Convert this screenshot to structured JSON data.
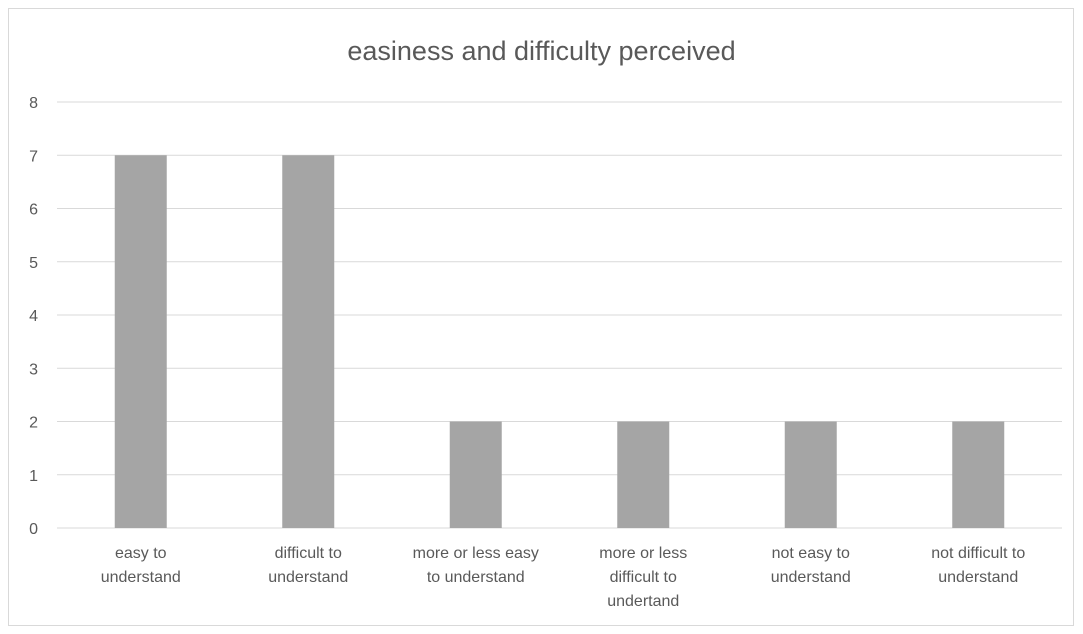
{
  "chart_data": {
    "type": "bar",
    "title": "easiness and difficulty perceived",
    "categories": [
      [
        "easy to",
        "understand"
      ],
      [
        "difficult to",
        "understand"
      ],
      [
        "more or less easy",
        "to understand"
      ],
      [
        "more or less",
        "difficult to",
        "undertand"
      ],
      [
        "not easy to",
        "understand"
      ],
      [
        "not difficult to",
        "understand"
      ]
    ],
    "values": [
      7,
      7,
      2,
      2,
      2,
      2
    ],
    "ylim": [
      0,
      8
    ],
    "yticks": [
      "0",
      "1",
      "2",
      "3",
      "4",
      "5",
      "6",
      "7",
      "8"
    ],
    "grid": true,
    "colors": {
      "bar": "#a5a5a5",
      "grid": "#d9d9d9",
      "text": "#595959"
    }
  }
}
